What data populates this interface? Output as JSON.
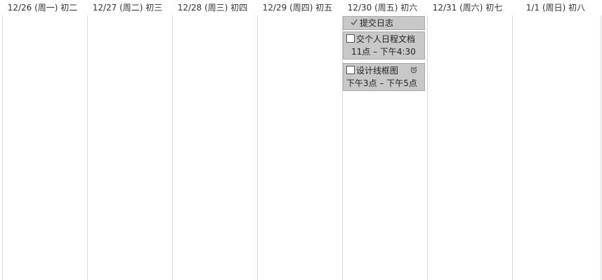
{
  "days": [
    {
      "label": "12/26 (周一) 初二"
    },
    {
      "label": "12/27 (周二) 初三"
    },
    {
      "label": "12/28 (周三) 初四"
    },
    {
      "label": "12/29 (周四) 初五"
    },
    {
      "label": "12/30 (周五) 初六"
    },
    {
      "label": "12/31 (周六) 初七"
    },
    {
      "label": "1/1 (周日) 初八"
    }
  ],
  "events": [
    {
      "title": "提交日志",
      "completed": true,
      "icon": "checkmark-icon"
    },
    {
      "title": "交个人日程文档",
      "time": "11点 – 下午4:30",
      "completed": false,
      "icon": "checkbox"
    },
    {
      "title": "设计线框图",
      "time": "下午3点 – 下午5点",
      "completed": false,
      "icon": "checkbox",
      "reminder_icon": "alarm-clock-icon"
    }
  ],
  "colors": {
    "event_background": "#c8c8c8",
    "event_border": "#a8a8a8",
    "grid_line": "#d9d9d9"
  }
}
